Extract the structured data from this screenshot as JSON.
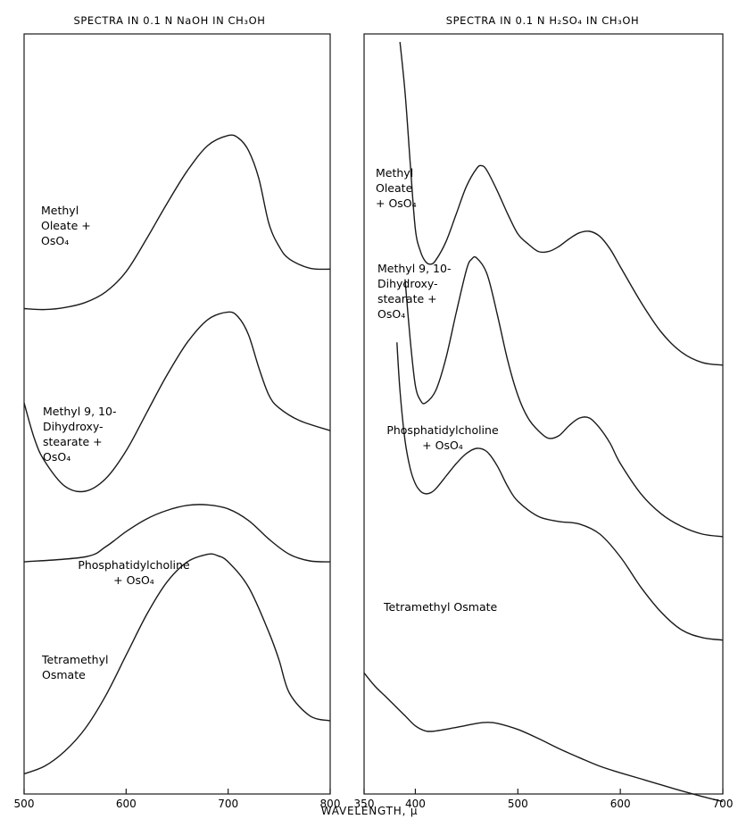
{
  "xlabel": "WAVELENGTH, μ",
  "chart_data": [
    {
      "type": "line",
      "title": "SPECTRA IN 0.1 N NaOH IN CH₃OH",
      "xlim": [
        500,
        800
      ],
      "x_ticks": [
        500,
        600,
        700,
        800
      ],
      "x_tick_labels": [
        "500",
        "600",
        "700",
        "800"
      ],
      "series": [
        {
          "label_lines": [
            "Methyl",
            "Oleate +",
            "OsO₄"
          ],
          "x": [
            500,
            520,
            540,
            560,
            580,
            600,
            620,
            640,
            660,
            680,
            700,
            710,
            720,
            730,
            740,
            750,
            760,
            780,
            800
          ],
          "y": [
            9.62,
            9.6,
            9.64,
            9.74,
            9.95,
            10.35,
            11.0,
            11.7,
            12.35,
            12.85,
            13.05,
            13.0,
            12.75,
            12.2,
            11.3,
            10.85,
            10.6,
            10.42,
            10.4
          ]
        },
        {
          "label_lines": [
            "Methyl 9, 10-",
            "Dihydroxy-",
            "stearate +",
            "OsO₄"
          ],
          "x": [
            500,
            510,
            520,
            540,
            560,
            580,
            600,
            620,
            640,
            660,
            680,
            700,
            710,
            720,
            730,
            740,
            750,
            770,
            800
          ],
          "y": [
            7.75,
            7.05,
            6.6,
            6.1,
            6.0,
            6.25,
            6.8,
            7.55,
            8.3,
            8.95,
            9.4,
            9.55,
            9.45,
            9.1,
            8.45,
            7.9,
            7.65,
            7.4,
            7.2
          ]
        },
        {
          "label_lines": [
            "Phosphatidylcholine",
            "+ OsO₄"
          ],
          "x": [
            500,
            560,
            580,
            600,
            620,
            640,
            660,
            680,
            700,
            720,
            740,
            760,
            780,
            800
          ],
          "y": [
            4.6,
            4.7,
            4.9,
            5.2,
            5.45,
            5.62,
            5.72,
            5.73,
            5.65,
            5.42,
            5.05,
            4.75,
            4.62,
            4.6
          ]
        },
        {
          "label_lines": [
            "Tetramethyl",
            "Osmate"
          ],
          "x": [
            500,
            520,
            540,
            560,
            580,
            600,
            620,
            640,
            660,
            680,
            690,
            700,
            720,
            740,
            750,
            760,
            780,
            800
          ],
          "y": [
            0.4,
            0.55,
            0.85,
            1.3,
            1.95,
            2.75,
            3.55,
            4.2,
            4.6,
            4.75,
            4.72,
            4.6,
            4.1,
            3.2,
            2.65,
            2.0,
            1.55,
            1.45
          ]
        }
      ]
    },
    {
      "type": "line",
      "title": "SPECTRA IN 0.1 N H₂SO₄ IN CH₃OH",
      "xlim": [
        350,
        700
      ],
      "x_ticks": [
        350,
        400,
        500,
        600,
        700
      ],
      "x_tick_labels": [
        "350",
        "400",
        "500",
        "600",
        "700"
      ],
      "series": [
        {
          "label_lines": [
            "Methyl",
            "Oleate",
            "+ OsO₄"
          ],
          "x": [
            385,
            390,
            395,
            400,
            405,
            410,
            415,
            420,
            430,
            440,
            450,
            460,
            465,
            470,
            480,
            490,
            500,
            510,
            520,
            530,
            540,
            550,
            560,
            570,
            580,
            590,
            600,
            620,
            640,
            660,
            680,
            700
          ],
          "y": [
            14.9,
            13.9,
            12.5,
            11.2,
            10.75,
            10.55,
            10.5,
            10.58,
            10.95,
            11.5,
            12.05,
            12.4,
            12.45,
            12.35,
            11.95,
            11.5,
            11.1,
            10.9,
            10.75,
            10.75,
            10.85,
            11.0,
            11.12,
            11.15,
            11.05,
            10.8,
            10.45,
            9.75,
            9.15,
            8.75,
            8.55,
            8.5
          ]
        },
        {
          "label_lines": [
            "Methyl 9, 10-",
            "Dihydroxy-",
            "stearate +",
            "OsO₄"
          ],
          "x": [
            390,
            395,
            400,
            405,
            410,
            420,
            430,
            440,
            450,
            455,
            460,
            470,
            480,
            490,
            500,
            510,
            520,
            530,
            540,
            550,
            560,
            570,
            580,
            590,
            600,
            620,
            640,
            660,
            680,
            700
          ],
          "y": [
            10.2,
            9.0,
            8.1,
            7.8,
            7.75,
            8.0,
            8.65,
            9.55,
            10.4,
            10.6,
            10.62,
            10.3,
            9.5,
            8.6,
            7.9,
            7.45,
            7.2,
            7.05,
            7.1,
            7.3,
            7.45,
            7.45,
            7.25,
            6.95,
            6.55,
            5.95,
            5.55,
            5.3,
            5.15,
            5.1
          ]
        },
        {
          "label_lines": [
            "Phosphatidylcholine",
            "+ OsO₄"
          ],
          "x": [
            382,
            385,
            390,
            395,
            400,
            405,
            410,
            415,
            420,
            430,
            440,
            450,
            460,
            470,
            480,
            490,
            500,
            520,
            540,
            560,
            580,
            600,
            620,
            640,
            660,
            680,
            700
          ],
          "y": [
            8.95,
            8.0,
            7.0,
            6.45,
            6.15,
            6.0,
            5.95,
            5.97,
            6.05,
            6.3,
            6.55,
            6.75,
            6.85,
            6.78,
            6.5,
            6.1,
            5.8,
            5.5,
            5.4,
            5.35,
            5.15,
            4.7,
            4.1,
            3.6,
            3.25,
            3.1,
            3.05
          ]
        },
        {
          "label_lines": [
            "Tetramethyl Osmate"
          ],
          "x": [
            350,
            360,
            370,
            380,
            390,
            400,
            410,
            420,
            440,
            460,
            470,
            480,
            500,
            520,
            540,
            560,
            580,
            600,
            620,
            640,
            660,
            680,
            700
          ],
          "y": [
            2.4,
            2.15,
            1.95,
            1.75,
            1.55,
            1.35,
            1.25,
            1.25,
            1.32,
            1.4,
            1.42,
            1.4,
            1.28,
            1.1,
            0.9,
            0.72,
            0.55,
            0.42,
            0.3,
            0.18,
            0.06,
            -0.05,
            -0.15
          ]
        }
      ]
    }
  ]
}
